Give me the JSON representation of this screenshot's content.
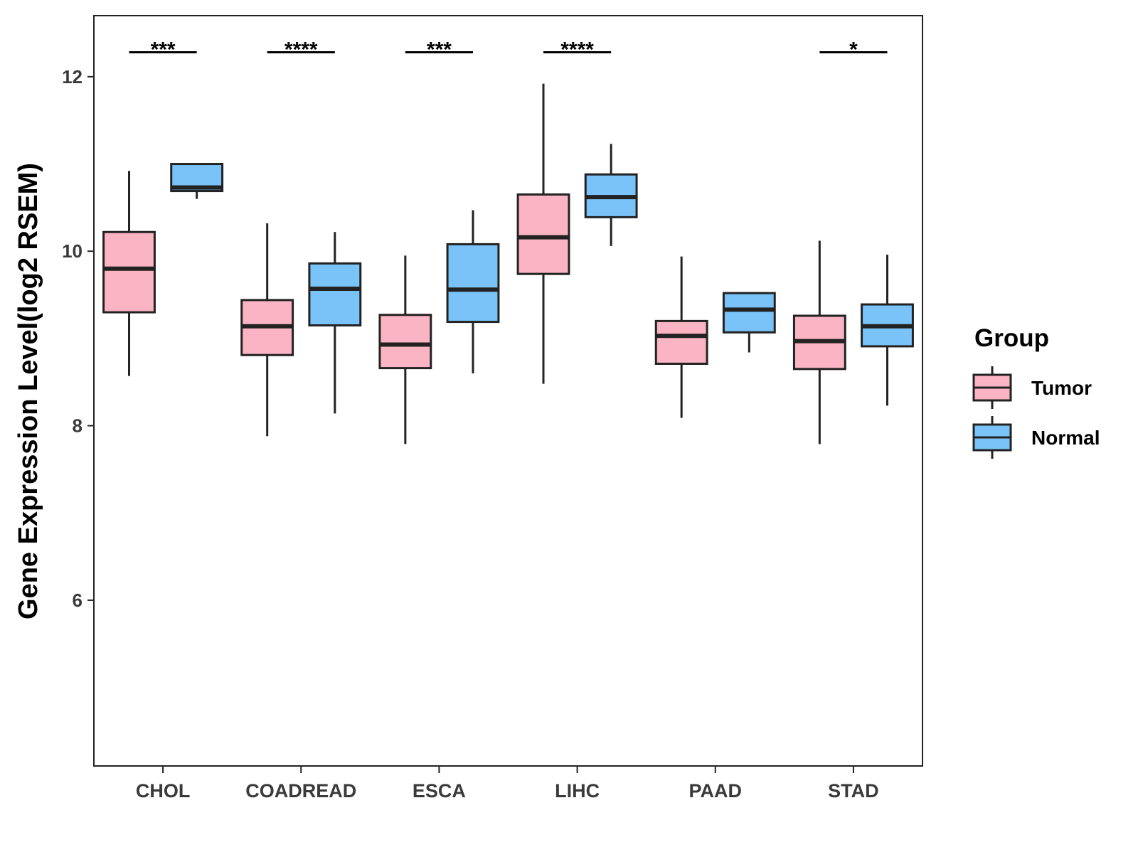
{
  "chart_data": {
    "type": "box",
    "title": "",
    "xlabel": "",
    "ylabel": "Gene Expression Level(log2 RSEM)",
    "ylim": [
      4.1,
      12.7
    ],
    "yticks": [
      6,
      8,
      10,
      12
    ],
    "categories": [
      "CHOL",
      "COADREAD",
      "ESCA",
      "LIHC",
      "PAAD",
      "STAD"
    ],
    "legend": {
      "title": "Group",
      "position": "right",
      "entries": [
        {
          "name": "Tumor",
          "color": "#fbb4c4"
        },
        {
          "name": "Normal",
          "color": "#7ac3f8"
        }
      ]
    },
    "series": [
      {
        "name": "Tumor",
        "color": "#fbb4c4",
        "boxes": [
          {
            "whisker_low": 8.57,
            "q1": 9.3,
            "median": 9.8,
            "q3": 10.22,
            "whisker_high": 10.92
          },
          {
            "whisker_low": 7.88,
            "q1": 8.81,
            "median": 9.14,
            "q3": 9.44,
            "whisker_high": 10.32
          },
          {
            "whisker_low": 7.79,
            "q1": 8.66,
            "median": 8.93,
            "q3": 9.27,
            "whisker_high": 9.95
          },
          {
            "whisker_low": 8.48,
            "q1": 9.74,
            "median": 10.16,
            "q3": 10.65,
            "whisker_high": 11.92
          },
          {
            "whisker_low": 8.09,
            "q1": 8.71,
            "median": 9.03,
            "q3": 9.2,
            "whisker_high": 9.94
          },
          {
            "whisker_low": 7.79,
            "q1": 8.65,
            "median": 8.97,
            "q3": 9.26,
            "whisker_high": 10.12
          }
        ]
      },
      {
        "name": "Normal",
        "color": "#7ac3f8",
        "boxes": [
          {
            "whisker_low": 10.6,
            "q1": 10.69,
            "median": 10.73,
            "q3": 11.0,
            "whisker_high": 11.0
          },
          {
            "whisker_low": 8.14,
            "q1": 9.15,
            "median": 9.57,
            "q3": 9.86,
            "whisker_high": 10.22
          },
          {
            "whisker_low": 8.6,
            "q1": 9.19,
            "median": 9.56,
            "q3": 10.08,
            "whisker_high": 10.47
          },
          {
            "whisker_low": 10.06,
            "q1": 10.39,
            "median": 10.62,
            "q3": 10.88,
            "whisker_high": 11.23
          },
          {
            "whisker_low": 8.84,
            "q1": 9.07,
            "median": 9.33,
            "q3": 9.52,
            "whisker_high": 9.52
          },
          {
            "whisker_low": 8.23,
            "q1": 8.91,
            "median": 9.14,
            "q3": 9.39,
            "whisker_high": 9.96
          }
        ]
      }
    ],
    "significance": [
      {
        "category": "CHOL",
        "label": "***",
        "y": 12.28
      },
      {
        "category": "COADREAD",
        "label": "****",
        "y": 12.28
      },
      {
        "category": "ESCA",
        "label": "***",
        "y": 12.28
      },
      {
        "category": "LIHC",
        "label": "****",
        "y": 12.28
      },
      {
        "category": "STAD",
        "label": "*",
        "y": 12.28
      }
    ]
  }
}
